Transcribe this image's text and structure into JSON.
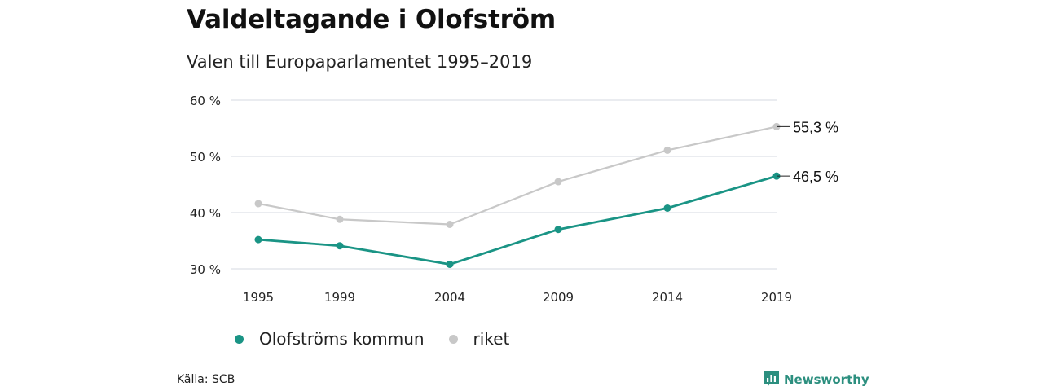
{
  "header": {
    "title": "Valdeltagande i Olofström",
    "subtitle": "Valen till Europaparlamentet 1995–2019"
  },
  "chart_data": {
    "type": "line",
    "title": "Valdeltagande i Olofström",
    "subtitle": "Valen till Europaparlamentet 1995–2019",
    "categories": [
      "1995",
      "1999",
      "2004",
      "2009",
      "2014",
      "2019"
    ],
    "y_ticks": [
      "60 %",
      "50 %",
      "40 %",
      "30 %"
    ],
    "ylim": [
      30,
      60
    ],
    "grid": true,
    "legend_position": "bottom",
    "series": [
      {
        "name": "Olofströms kommun",
        "color": "#1a9485",
        "values": [
          35.2,
          34.1,
          30.8,
          37.0,
          40.8,
          46.5
        ],
        "end_label": "46,5 %"
      },
      {
        "name": "riket",
        "color": "#c8c8c8",
        "values": [
          41.6,
          38.8,
          37.9,
          45.5,
          51.1,
          55.3
        ],
        "end_label": "55,3 %"
      }
    ]
  },
  "legend": {
    "items": [
      {
        "label": "Olofströms kommun",
        "color": "#1a9485"
      },
      {
        "label": "riket",
        "color": "#c8c8c8"
      }
    ]
  },
  "footer": {
    "source": "Källa: SCB",
    "brand": "Newsworthy",
    "brand_icon": "bar-chart-icon",
    "brand_color": "#2c8f7f"
  }
}
